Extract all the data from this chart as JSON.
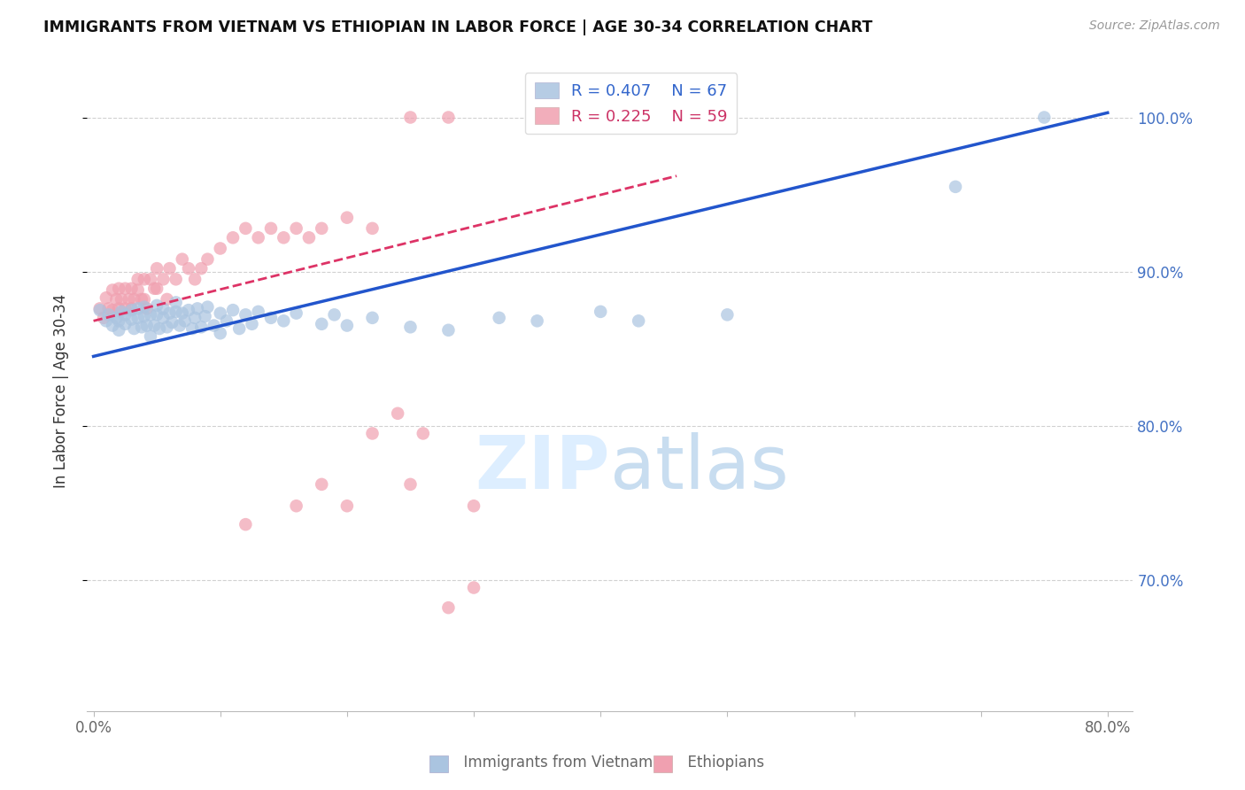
{
  "title": "IMMIGRANTS FROM VIETNAM VS ETHIOPIAN IN LABOR FORCE | AGE 30-34 CORRELATION CHART",
  "source": "Source: ZipAtlas.com",
  "ylabel": "In Labor Force | Age 30-34",
  "legend_labels": [
    "Immigrants from Vietnam",
    "Ethiopians"
  ],
  "r_vietnam": 0.407,
  "n_vietnam": 67,
  "r_ethiopian": 0.225,
  "n_ethiopian": 59,
  "xlim": [
    -0.005,
    0.82
  ],
  "ylim": [
    0.615,
    1.03
  ],
  "yticks": [
    0.7,
    0.8,
    0.9,
    1.0
  ],
  "ytick_labels": [
    "70.0%",
    "80.0%",
    "90.0%",
    "100.0%"
  ],
  "xticks": [
    0.0,
    0.1,
    0.2,
    0.3,
    0.4,
    0.5,
    0.6,
    0.7,
    0.8
  ],
  "xtick_labels": [
    "0.0%",
    "",
    "",
    "",
    "",
    "",
    "",
    "",
    "80.0%"
  ],
  "color_vietnam": "#aac4e0",
  "color_ethiopian": "#f0a0b0",
  "color_vietnam_line": "#2255cc",
  "color_ethiopian_line": "#dd3366",
  "watermark_color": "#ddeeff",
  "background_color": "#ffffff",
  "vietnam_line_x": [
    0.0,
    0.8
  ],
  "vietnam_line_y": [
    0.845,
    1.003
  ],
  "ethiopian_line_x": [
    0.0,
    0.46
  ],
  "ethiopian_line_y": [
    0.868,
    0.962
  ],
  "vietnam_x": [
    0.005,
    0.01,
    0.012,
    0.015,
    0.018,
    0.02,
    0.02,
    0.022,
    0.025,
    0.025,
    0.03,
    0.03,
    0.032,
    0.035,
    0.035,
    0.038,
    0.04,
    0.04,
    0.042,
    0.045,
    0.045,
    0.048,
    0.05,
    0.05,
    0.052,
    0.055,
    0.055,
    0.058,
    0.06,
    0.062,
    0.065,
    0.065,
    0.068,
    0.07,
    0.072,
    0.075,
    0.078,
    0.08,
    0.082,
    0.085,
    0.088,
    0.09,
    0.095,
    0.1,
    0.1,
    0.105,
    0.11,
    0.115,
    0.12,
    0.125,
    0.13,
    0.14,
    0.15,
    0.16,
    0.18,
    0.19,
    0.2,
    0.22,
    0.25,
    0.28,
    0.32,
    0.35,
    0.4,
    0.43,
    0.5,
    0.68,
    0.75
  ],
  "vietnam_y": [
    0.875,
    0.868,
    0.872,
    0.865,
    0.87,
    0.862,
    0.868,
    0.874,
    0.866,
    0.872,
    0.869,
    0.875,
    0.863,
    0.87,
    0.876,
    0.864,
    0.871,
    0.877,
    0.865,
    0.872,
    0.858,
    0.865,
    0.872,
    0.878,
    0.863,
    0.87,
    0.876,
    0.864,
    0.873,
    0.867,
    0.874,
    0.88,
    0.865,
    0.873,
    0.868,
    0.875,
    0.863,
    0.87,
    0.876,
    0.864,
    0.871,
    0.877,
    0.865,
    0.873,
    0.86,
    0.868,
    0.875,
    0.863,
    0.872,
    0.866,
    0.874,
    0.87,
    0.868,
    0.873,
    0.866,
    0.872,
    0.865,
    0.87,
    0.864,
    0.862,
    0.87,
    0.868,
    0.874,
    0.868,
    0.872,
    0.955,
    1.0
  ],
  "ethiopian_x": [
    0.005,
    0.008,
    0.01,
    0.012,
    0.015,
    0.015,
    0.018,
    0.02,
    0.02,
    0.022,
    0.025,
    0.025,
    0.028,
    0.03,
    0.03,
    0.032,
    0.035,
    0.035,
    0.038,
    0.04,
    0.04,
    0.042,
    0.045,
    0.048,
    0.05,
    0.05,
    0.055,
    0.058,
    0.06,
    0.065,
    0.07,
    0.075,
    0.08,
    0.085,
    0.09,
    0.1,
    0.11,
    0.12,
    0.13,
    0.14,
    0.15,
    0.16,
    0.17,
    0.18,
    0.2,
    0.22,
    0.25,
    0.28,
    0.12,
    0.16,
    0.18,
    0.2,
    0.25,
    0.3,
    0.22,
    0.24,
    0.26,
    0.28,
    0.3
  ],
  "ethiopian_y": [
    0.876,
    0.87,
    0.883,
    0.876,
    0.888,
    0.875,
    0.882,
    0.876,
    0.889,
    0.882,
    0.876,
    0.889,
    0.882,
    0.889,
    0.876,
    0.882,
    0.895,
    0.888,
    0.882,
    0.895,
    0.882,
    0.876,
    0.895,
    0.889,
    0.902,
    0.889,
    0.895,
    0.882,
    0.902,
    0.895,
    0.908,
    0.902,
    0.895,
    0.902,
    0.908,
    0.915,
    0.922,
    0.928,
    0.922,
    0.928,
    0.922,
    0.928,
    0.922,
    0.928,
    0.935,
    0.928,
    1.0,
    1.0,
    0.736,
    0.748,
    0.762,
    0.748,
    0.762,
    0.748,
    0.795,
    0.808,
    0.795,
    0.682,
    0.695
  ]
}
